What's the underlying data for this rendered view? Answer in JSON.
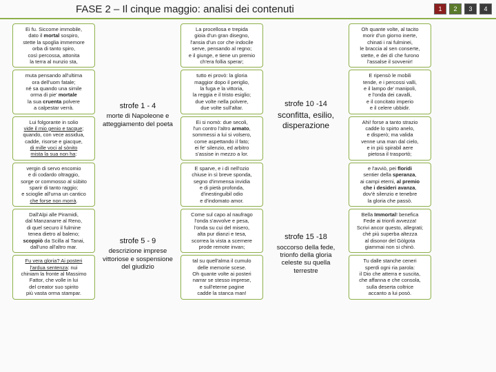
{
  "header": {
    "title": "FASE 2 – Il cinque maggio: analisi dei contenuti",
    "badges": [
      {
        "n": "1",
        "bg": "#8b1e1e"
      },
      {
        "n": "2",
        "bg": "#5a7a2a"
      },
      {
        "n": "3",
        "bg": "#3a3a3a"
      },
      {
        "n": "4",
        "bg": "#3a3a3a"
      }
    ]
  },
  "colors": {
    "border": "#8daf4a",
    "bg_page": "#fafafa"
  },
  "stanzas": {
    "c1": [
      "Ei fu. Siccome immobile,<br>dato il <b>mortal</b> sospiro,<br>stette la spoglia immemore<br>orba di tanto spiro,<br>così percossa, attonita<br>la terra al nunzio sta,",
      "muta pensando all'ultima<br>ora dell'uom fatale;<br>né sa quando una simile<br>orma di pie' <b>mortale</b><br>la sua <b>cruenta</b> polvere<br>a calpestar verrà.",
      "Lui folgorante in solio<br><u>vide il mio genio e tacque</u>;<br>quando, con vece assidua,<br>cadde, risorse e giacque,<br><u>di mille voci al sònito</u><br><u>mista la sua non ha</u>:",
      "vergin di servo encomio<br>e di codardo oltraggio,<br>sorge or commosso al sùbito<br>sparir di tanto raggio;<br>e scioglie all'urna un cantico<br><u>che forse non morrà</u>.",
      "Dall'Alpi alle Piramidi,<br>dal Manzanarre al Reno,<br>di quel securo il fulmine<br>tenea dietro al baleno;<br><b>scoppiò</b> da Scilla al Tanai,<br>dall'uno all'altro mar.",
      "<u>Fu vera gloria? Ai posteri</u><br><u>l'ardua sentenza</u>: nui<br>chiniam la fronte al Massimo<br>Fattor, che volle in lui<br>del creator suo spirito<br>più vasta orma stampar."
    ],
    "c3": [
      "La procellosa e trepida<br>gioia d'un gran disegno,<br>l'ansia d'un cor che indocile<br>serve, pensando al regno;<br>e il giunge, e tiene un premio<br>ch'era follia sperar;",
      "tutto ei provò: la gloria<br>maggior dopo il periglio,<br>la fuga e la vittoria,<br>la reggia e il tristo esiglio;<br>due volte nella polvere,<br>due volte sull'altar.",
      "Ei si nomò: due secoli,<br>l'un contro l'altro <b>armato</b>,<br>sommessi a lui si volsero,<br>come aspettando il fato;<br>ei fe' silenzio, ed arbitro<br>s'assise in mezzo a lor.",
      "E sparve, e i dì nell'ozio<br>chiuse in sì breve sponda,<br>segno d'immensa invidia<br>e di pietà profonda,<br>d'inestinguibil odio<br>e d'indomato amor.",
      "Come sul capo al naufrago<br>l'onda s'avvolve e pesa,<br>l'onda su cui del misero,<br>alta pur dianzi e tesa,<br>scorrea la vista a scernere<br>prode remote invan;",
      "tal su quell'alma il cumulo<br>delle memorie scese.<br>Oh quante volte ai posteri<br>narrar se stesso imprese,<br>e sull'eterne pagine<br>cadde la stanca man!"
    ],
    "c5": [
      "Oh quante volte, al tacito<br>morir d'un giorno inerte,<br>chinati i rai fulminei,<br>le braccia al sen conserte,<br>stette, e dei dì che furono<br>l'assalse il sovvenir!",
      "E ripensò le mobili<br>tende, e i percossi valli,<br>e il lampo de' manipoli,<br>e l'onda dei cavalli,<br>e il concitato imperio<br>e il celere ubbidir.",
      "Ahi! forse a tanto strazio<br>cadde lo spirto anelo,<br>e disperò; ma valida<br>venne una man dal cielo,<br>e in più spirabil aere<br>pietosa il trasportò;",
      "e l'avviò, pei <b>floridi</b><br>sentier della <b>speranza</b>,<br>ai campi eterni, <b>al premio</b><br><b>che i desideri avanza</b>,<br>dov'è silenzio e tenebre<br>la gloria che passò.",
      "Bella <b>Immortal</b>! benefica<br>Fede ai trionfi avvezza!<br>Scrivi ancor questo, allegrati;<br>ché più superba altezza<br>al disonor del Gòlgota<br>giammai non si chinò.",
      "Tu dalle stanche ceneri<br>sperdi ogni ria parola:<br>il Dio che atterra e suscita,<br>che affanna e che consola,<br>sulla deserta coltrice<br>accanto a lui posò."
    ]
  },
  "labels": {
    "l1": {
      "title": "strofe 1 - 4",
      "sub": "morte di Napoleone e atteggiamento del poeta"
    },
    "l2": {
      "title": "strofe 5 - 9",
      "sub": "descrizione imprese vittoriose e sospensione del giudizio"
    },
    "l3": {
      "title": "strofe 10 -14",
      "sub": "sconfitta, esilio, disperazione"
    },
    "l4": {
      "title": "strofe 15 -18",
      "sub": "soccorso della fede, trionfo della gloria celeste su quella terrestre"
    }
  }
}
